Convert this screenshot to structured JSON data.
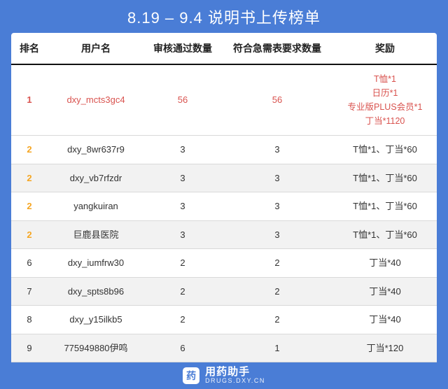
{
  "colors": {
    "page_bg": "#4a7dd6",
    "card_bg": "#ffffff",
    "header_border": "#111111",
    "row_border": "#d9d9d9",
    "alt_row_bg": "#f2f2f2",
    "text": "#333333",
    "title_text": "#ffffff",
    "rank_gold": "#f5a623",
    "rank_red": "#d9534f",
    "highlight_text": "#d9534f"
  },
  "title": "8.19 – 9.4 说明书上传榜单",
  "columns": {
    "rank": "排名",
    "user": "用户名",
    "pass": "审核通过数量",
    "urgent": "符合急需表要求数量",
    "reward": "奖励"
  },
  "rows": [
    {
      "rank": "1",
      "rank_style": "red",
      "highlight": true,
      "alt": false,
      "user": "dxy_mcts3gc4",
      "pass": "56",
      "urgent": "56",
      "reward_lines": [
        "T恤*1",
        "日历*1",
        "专业版PLUS会员*1",
        "丁当*1120"
      ]
    },
    {
      "rank": "2",
      "rank_style": "gold",
      "highlight": false,
      "alt": false,
      "user": "dxy_8wr637r9",
      "pass": "3",
      "urgent": "3",
      "reward_lines": [
        "T恤*1、丁当*60"
      ]
    },
    {
      "rank": "2",
      "rank_style": "gold",
      "highlight": false,
      "alt": true,
      "user": "dxy_vb7rfzdr",
      "pass": "3",
      "urgent": "3",
      "reward_lines": [
        "T恤*1、丁当*60"
      ]
    },
    {
      "rank": "2",
      "rank_style": "gold",
      "highlight": false,
      "alt": false,
      "user": "yangkuiran",
      "pass": "3",
      "urgent": "3",
      "reward_lines": [
        "T恤*1、丁当*60"
      ]
    },
    {
      "rank": "2",
      "rank_style": "gold",
      "highlight": false,
      "alt": true,
      "user": "巨鹿县医院",
      "pass": "3",
      "urgent": "3",
      "reward_lines": [
        "T恤*1、丁当*60"
      ]
    },
    {
      "rank": "6",
      "rank_style": "",
      "highlight": false,
      "alt": false,
      "user": "dxy_iumfrw30",
      "pass": "2",
      "urgent": "2",
      "reward_lines": [
        "丁当*40"
      ]
    },
    {
      "rank": "7",
      "rank_style": "",
      "highlight": false,
      "alt": true,
      "user": "dxy_spts8b96",
      "pass": "2",
      "urgent": "2",
      "reward_lines": [
        "丁当*40"
      ]
    },
    {
      "rank": "8",
      "rank_style": "",
      "highlight": false,
      "alt": false,
      "user": "dxy_y15ilkb5",
      "pass": "2",
      "urgent": "2",
      "reward_lines": [
        "丁当*40"
      ]
    },
    {
      "rank": "9",
      "rank_style": "",
      "highlight": false,
      "alt": true,
      "user": "775949880伊鸣",
      "pass": "6",
      "urgent": "1",
      "reward_lines": [
        "丁当*120"
      ]
    }
  ],
  "footer": {
    "logo_glyph": "药",
    "brand_main": "用药助手",
    "brand_sub": "DRUGS.DXY.CN"
  }
}
